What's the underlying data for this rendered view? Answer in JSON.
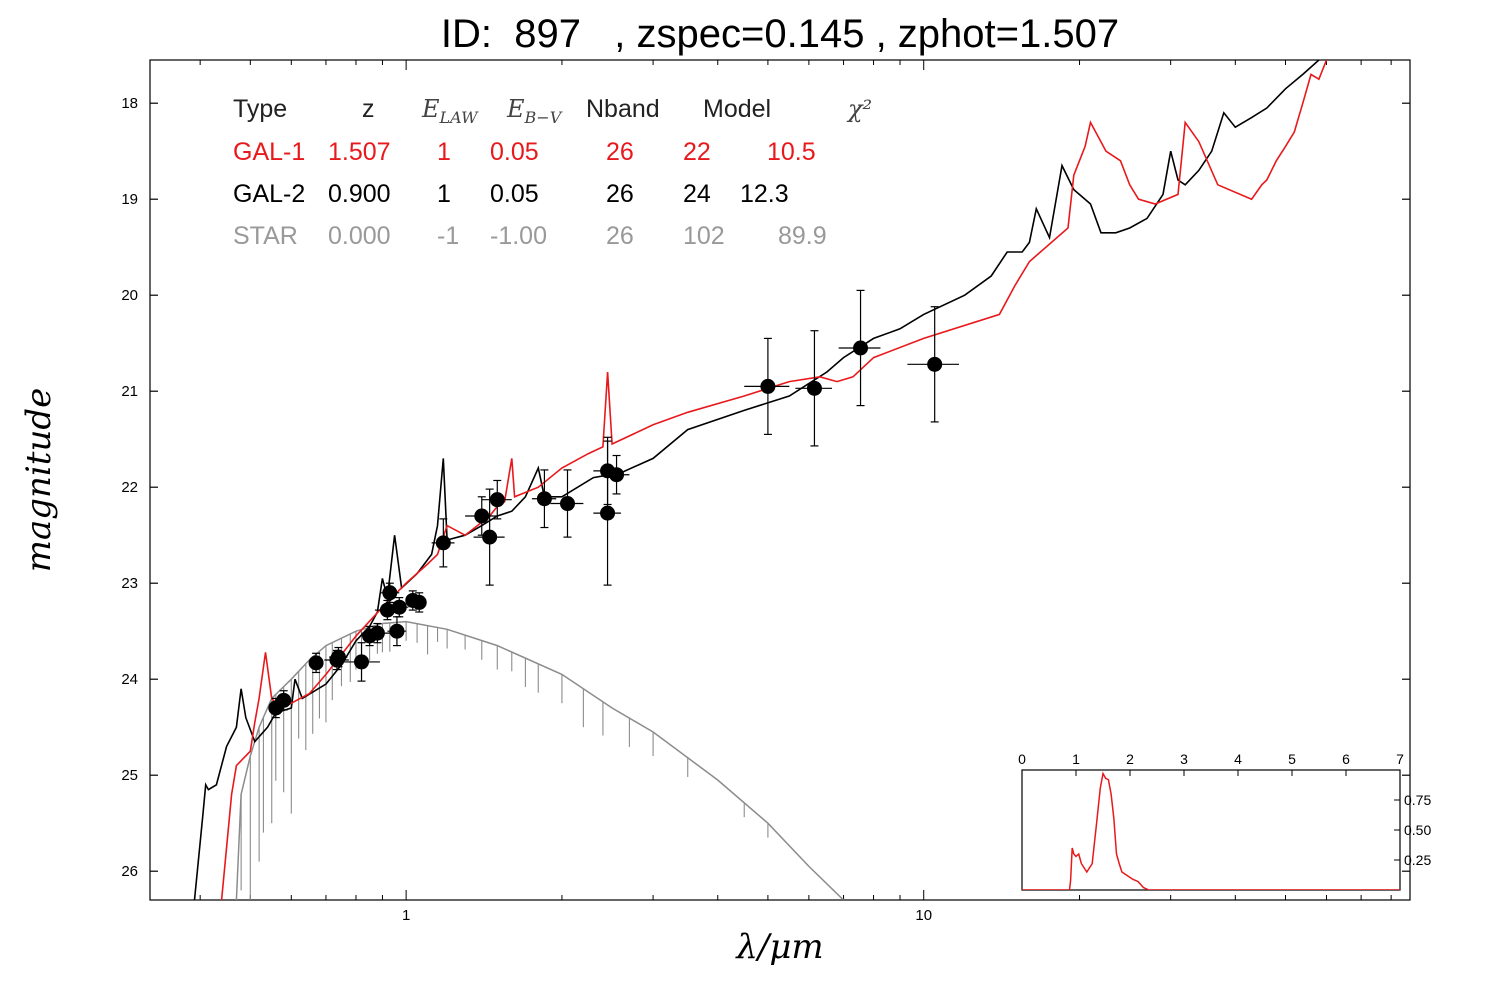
{
  "title": {
    "text": "ID:  897   , zspec=0.145 , zphot=1.507"
  },
  "colors": {
    "gal1": "#e8191c",
    "gal2": "#000000",
    "star": "#8c8c8c",
    "axis": "#000000"
  },
  "chart_data": [
    {
      "type": "line",
      "xlabel": "λ/μm",
      "ylabel": "magnitude",
      "x_scale": "log",
      "xlim": [
        0.32,
        87
      ],
      "ylim": [
        26.3,
        17.55
      ],
      "y_inverted": true,
      "x_ticks": [
        {
          "value": 1,
          "label": "1"
        },
        {
          "value": 10,
          "label": "10"
        }
      ],
      "y_ticks": [
        18,
        19,
        20,
        21,
        22,
        23,
        24,
        25,
        26
      ],
      "fit_table": {
        "headers": {
          "type": "Type",
          "z": "z",
          "elaw": "E_LAW",
          "ebv": "E_B−V",
          "nband": "Nband",
          "model": "Model",
          "chi2": "χ²"
        },
        "rows": [
          {
            "type": "GAL-1",
            "z": "1.507",
            "elaw": "1",
            "ebv": "0.05",
            "nband": "26",
            "model": "22",
            "chi2": "10.5",
            "color": "#e8191c"
          },
          {
            "type": "GAL-2",
            "z": "0.900",
            "elaw": "1",
            "ebv": "0.05",
            "nband": "26",
            "model": "24",
            "chi2": "12.3",
            "color": "#000000"
          },
          {
            "type": "STAR",
            "z": "0.000",
            "elaw": "-1",
            "ebv": "-1.00",
            "nband": "26",
            "model": "102",
            "chi2": "89.9",
            "color": "#999999"
          }
        ]
      },
      "series": [
        {
          "name": "GAL-1",
          "color": "#e8191c",
          "points": [
            [
              0.44,
              26.3
            ],
            [
              0.46,
              25.2
            ],
            [
              0.47,
              24.9
            ],
            [
              0.5,
              24.75
            ],
            [
              0.51,
              24.45
            ],
            [
              0.52,
              24.2
            ],
            [
              0.535,
              23.72
            ],
            [
              0.55,
              24.2
            ],
            [
              0.57,
              24.3
            ],
            [
              0.6,
              24.25
            ],
            [
              0.65,
              24.15
            ],
            [
              0.7,
              23.95
            ],
            [
              0.8,
              23.55
            ],
            [
              0.9,
              23.25
            ],
            [
              1.0,
              23.0
            ],
            [
              1.1,
              22.8
            ],
            [
              1.15,
              22.7
            ],
            [
              1.2,
              22.4
            ],
            [
              1.3,
              22.5
            ],
            [
              1.45,
              22.3
            ],
            [
              1.5,
              22.2
            ],
            [
              1.55,
              22.15
            ],
            [
              1.6,
              21.7
            ],
            [
              1.62,
              22.1
            ],
            [
              1.8,
              22.0
            ],
            [
              2.0,
              21.8
            ],
            [
              2.25,
              21.65
            ],
            [
              2.4,
              21.58
            ],
            [
              2.45,
              20.8
            ],
            [
              2.5,
              21.55
            ],
            [
              3.0,
              21.35
            ],
            [
              3.5,
              21.22
            ],
            [
              4.5,
              21.05
            ],
            [
              5.5,
              20.9
            ],
            [
              6.3,
              20.85
            ],
            [
              6.8,
              20.9
            ],
            [
              7.3,
              20.85
            ],
            [
              8.0,
              20.65
            ],
            [
              10.0,
              20.45
            ],
            [
              14.0,
              20.2
            ],
            [
              15.0,
              19.9
            ],
            [
              16.0,
              19.65
            ],
            [
              19.0,
              19.3
            ],
            [
              19.5,
              18.75
            ],
            [
              20.5,
              18.45
            ],
            [
              21.0,
              18.2
            ],
            [
              22.5,
              18.5
            ],
            [
              24.0,
              18.6
            ],
            [
              25.0,
              18.85
            ],
            [
              26.0,
              19.0
            ],
            [
              28.0,
              19.05
            ],
            [
              31.0,
              18.95
            ],
            [
              32.0,
              18.2
            ],
            [
              34.0,
              18.4
            ],
            [
              37.0,
              18.85
            ],
            [
              43.0,
              19.0
            ],
            [
              45.0,
              18.85
            ],
            [
              46.0,
              18.8
            ],
            [
              48.0,
              18.6
            ],
            [
              50.0,
              18.45
            ],
            [
              52.0,
              18.3
            ],
            [
              54.0,
              18.0
            ],
            [
              56.0,
              17.7
            ],
            [
              58.0,
              17.75
            ],
            [
              60.0,
              17.55
            ]
          ]
        },
        {
          "name": "GAL-2",
          "color": "#000000",
          "points": [
            [
              0.39,
              26.3
            ],
            [
              0.405,
              25.4
            ],
            [
              0.41,
              25.1
            ],
            [
              0.415,
              25.15
            ],
            [
              0.43,
              25.1
            ],
            [
              0.45,
              24.7
            ],
            [
              0.47,
              24.5
            ],
            [
              0.48,
              24.1
            ],
            [
              0.49,
              24.4
            ],
            [
              0.51,
              24.65
            ],
            [
              0.54,
              24.5
            ],
            [
              0.56,
              24.35
            ],
            [
              0.6,
              24.3
            ],
            [
              0.61,
              24.0
            ],
            [
              0.63,
              24.2
            ],
            [
              0.7,
              24.05
            ],
            [
              0.75,
              23.85
            ],
            [
              0.8,
              23.6
            ],
            [
              0.85,
              23.45
            ],
            [
              0.88,
              23.3
            ],
            [
              0.9,
              22.95
            ],
            [
              0.92,
              23.15
            ],
            [
              0.95,
              22.5
            ],
            [
              0.98,
              23.05
            ],
            [
              1.05,
              22.9
            ],
            [
              1.12,
              22.7
            ],
            [
              1.15,
              22.4
            ],
            [
              1.18,
              21.7
            ],
            [
              1.2,
              22.55
            ],
            [
              1.3,
              22.5
            ],
            [
              1.4,
              22.4
            ],
            [
              1.5,
              22.3
            ],
            [
              1.6,
              22.25
            ],
            [
              1.7,
              22.1
            ],
            [
              1.8,
              21.8
            ],
            [
              1.85,
              22.1
            ],
            [
              2.0,
              22.1
            ],
            [
              2.3,
              21.9
            ],
            [
              2.6,
              21.85
            ],
            [
              3.0,
              21.7
            ],
            [
              3.5,
              21.4
            ],
            [
              4.5,
              21.2
            ],
            [
              5.5,
              21.05
            ],
            [
              6.5,
              20.8
            ],
            [
              7.0,
              20.65
            ],
            [
              8.0,
              20.45
            ],
            [
              9.0,
              20.35
            ],
            [
              10.0,
              20.2
            ],
            [
              12.0,
              20.0
            ],
            [
              13.5,
              19.8
            ],
            [
              14.5,
              19.55
            ],
            [
              15.5,
              19.55
            ],
            [
              16.0,
              19.45
            ],
            [
              16.5,
              19.1
            ],
            [
              17.5,
              19.4
            ],
            [
              18.5,
              18.65
            ],
            [
              19.5,
              18.9
            ],
            [
              21.0,
              19.05
            ],
            [
              22.0,
              19.35
            ],
            [
              23.5,
              19.35
            ],
            [
              25.0,
              19.3
            ],
            [
              27.0,
              19.2
            ],
            [
              29.0,
              18.95
            ],
            [
              30.0,
              18.5
            ],
            [
              31.0,
              18.8
            ],
            [
              32.0,
              18.85
            ],
            [
              34.0,
              18.7
            ],
            [
              36.0,
              18.5
            ],
            [
              38.0,
              18.1
            ],
            [
              40.0,
              18.25
            ],
            [
              43.0,
              18.15
            ],
            [
              46.0,
              18.05
            ],
            [
              50.0,
              17.85
            ],
            [
              54.0,
              17.7
            ],
            [
              58.0,
              17.55
            ]
          ]
        },
        {
          "name": "STAR",
          "color": "#8c8c8c",
          "points": [
            [
              0.47,
              26.3
            ],
            [
              0.48,
              25.2
            ],
            [
              0.5,
              24.8
            ],
            [
              0.52,
              24.5
            ],
            [
              0.55,
              24.2
            ],
            [
              0.6,
              24.0
            ],
            [
              0.65,
              23.8
            ],
            [
              0.7,
              23.65
            ],
            [
              0.8,
              23.5
            ],
            [
              0.9,
              23.42
            ],
            [
              1.0,
              23.4
            ],
            [
              1.2,
              23.48
            ],
            [
              1.5,
              23.65
            ],
            [
              2.0,
              23.95
            ],
            [
              2.5,
              24.3
            ],
            [
              3.0,
              24.55
            ],
            [
              4.0,
              25.05
            ],
            [
              5.0,
              25.5
            ],
            [
              6.0,
              25.95
            ],
            [
              7.0,
              26.3
            ]
          ]
        }
      ],
      "spikes": [
        {
          "series": "STAR",
          "x": [
            0.47,
            0.48,
            0.5,
            0.52,
            0.53,
            0.55,
            0.56,
            0.58,
            0.6,
            0.62,
            0.64,
            0.66,
            0.68,
            0.7,
            0.72,
            0.75,
            0.78,
            0.8,
            0.82,
            0.85,
            0.88,
            0.9,
            0.93,
            0.96,
            1.0,
            1.05,
            1.1,
            1.15,
            1.2,
            1.3,
            1.4,
            1.5,
            1.6,
            1.7,
            1.8,
            2.0,
            2.2,
            2.4,
            2.7,
            3.0,
            3.5,
            4.5,
            5.0
          ],
          "depth": [
            1.5,
            1.0,
            1.8,
            1.4,
            1.2,
            1.3,
            0.9,
            1.1,
            1.4,
            0.7,
            0.9,
            0.8,
            0.7,
            0.8,
            0.6,
            0.5,
            0.5,
            0.4,
            0.5,
            0.35,
            0.3,
            0.3,
            0.3,
            0.25,
            0.2,
            0.2,
            0.3,
            0.15,
            0.2,
            0.15,
            0.2,
            0.25,
            0.2,
            0.3,
            0.3,
            0.3,
            0.4,
            0.35,
            0.3,
            0.25,
            0.2,
            0.15,
            0.15
          ]
        }
      ],
      "photometry": [
        {
          "x": 0.56,
          "y": 24.3,
          "xerr": 0.01,
          "yerr": 0.1
        },
        {
          "x": 0.58,
          "y": 24.22,
          "xerr": 0.015,
          "yerr": 0.1
        },
        {
          "x": 0.67,
          "y": 23.83,
          "xerr": 0.02,
          "yerr": 0.1
        },
        {
          "x": 0.735,
          "y": 23.8,
          "xerr": 0.04,
          "yerr": 0.1
        },
        {
          "x": 0.74,
          "y": 23.77,
          "xerr": 0.03,
          "yerr": 0.1
        },
        {
          "x": 0.82,
          "y": 23.82,
          "xerr": 0.07,
          "yerr": 0.2
        },
        {
          "x": 0.85,
          "y": 23.55,
          "xerr": 0.03,
          "yerr": 0.1
        },
        {
          "x": 0.88,
          "y": 23.52,
          "xerr": 0.06,
          "yerr": 0.1
        },
        {
          "x": 0.92,
          "y": 23.28,
          "xerr": 0.05,
          "yerr": 0.1
        },
        {
          "x": 0.93,
          "y": 23.1,
          "xerr": 0.04,
          "yerr": 0.1
        },
        {
          "x": 0.96,
          "y": 23.5,
          "xerr": 0.04,
          "yerr": 0.15
        },
        {
          "x": 0.97,
          "y": 23.25,
          "xerr": 0.04,
          "yerr": 0.1
        },
        {
          "x": 1.03,
          "y": 23.18,
          "xerr": 0.03,
          "yerr": 0.1
        },
        {
          "x": 1.06,
          "y": 23.2,
          "xerr": 0.03,
          "yerr": 0.1
        },
        {
          "x": 1.18,
          "y": 22.58,
          "xerr": 0.06,
          "yerr": 0.25
        },
        {
          "x": 1.4,
          "y": 22.3,
          "xerr": 0.1,
          "yerr": 0.2
        },
        {
          "x": 1.45,
          "y": 22.52,
          "xerr": 0.1,
          "yerr": 0.5
        },
        {
          "x": 1.5,
          "y": 22.13,
          "xerr": 0.1,
          "yerr": 0.2
        },
        {
          "x": 1.85,
          "y": 22.12,
          "xerr": 0.1,
          "yerr": 0.3
        },
        {
          "x": 2.05,
          "y": 22.17,
          "xerr": 0.15,
          "yerr": 0.35
        },
        {
          "x": 2.45,
          "y": 21.83,
          "xerr": 0.15,
          "yerr": 0.35
        },
        {
          "x": 2.45,
          "y": 22.27,
          "xerr": 0.15,
          "yerr": 0.75
        },
        {
          "x": 2.55,
          "y": 21.87,
          "xerr": 0.15,
          "yerr": 0.2
        },
        {
          "x": 5.0,
          "y": 20.95,
          "xerr": 0.5,
          "yerr": 0.5
        },
        {
          "x": 6.15,
          "y": 20.97,
          "xerr": 0.5,
          "yerr": 0.6
        },
        {
          "x": 7.55,
          "y": 20.55,
          "xerr": 0.7,
          "yerr": 0.6
        },
        {
          "x": 10.5,
          "y": 20.72,
          "xerr": 1.2,
          "yerr": 0.6
        }
      ]
    },
    {
      "type": "line",
      "xlim": [
        0,
        7
      ],
      "ylim": [
        0,
        1.0
      ],
      "x_ticks": [
        0,
        1,
        2,
        3,
        4,
        5,
        6,
        7
      ],
      "y_ticks": [
        "0.25",
        "0.50",
        "0.75"
      ],
      "series": [
        {
          "name": "",
          "color": "#e8191c",
          "points": [
            [
              0,
              0.0
            ],
            [
              0.88,
              0.0
            ],
            [
              0.9,
              0.08
            ],
            [
              0.93,
              0.35
            ],
            [
              0.96,
              0.3
            ],
            [
              1.0,
              0.28
            ],
            [
              1.05,
              0.3
            ],
            [
              1.1,
              0.22
            ],
            [
              1.2,
              0.15
            ],
            [
              1.3,
              0.22
            ],
            [
              1.38,
              0.55
            ],
            [
              1.45,
              0.85
            ],
            [
              1.5,
              0.97
            ],
            [
              1.55,
              0.93
            ],
            [
              1.6,
              0.92
            ],
            [
              1.65,
              0.8
            ],
            [
              1.7,
              0.6
            ],
            [
              1.75,
              0.3
            ],
            [
              1.8,
              0.22
            ],
            [
              1.85,
              0.15
            ],
            [
              1.95,
              0.12
            ],
            [
              2.05,
              0.09
            ],
            [
              2.15,
              0.07
            ],
            [
              2.25,
              0.02
            ],
            [
              2.35,
              0.0
            ],
            [
              7,
              0.0
            ]
          ]
        }
      ]
    }
  ]
}
